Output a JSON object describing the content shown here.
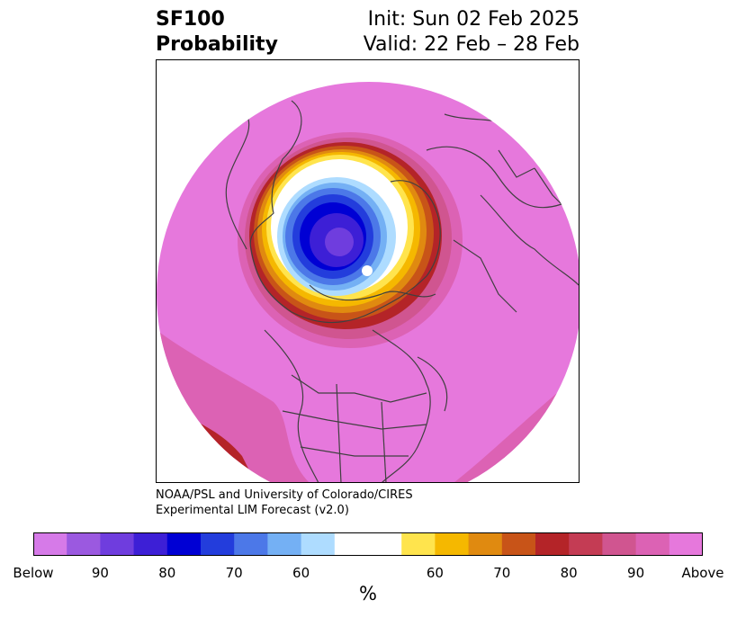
{
  "header": {
    "title_line1": "SF100",
    "title_line2": "Probability",
    "init": "Init: Sun 02 Feb 2025",
    "valid": "Valid: 22 Feb – 28 Feb"
  },
  "credit": {
    "line1": "NOAA/PSL and University of Colorado/CIRES",
    "line2": "Experimental LIM Forecast (v2.0)"
  },
  "colorbar": {
    "unit": "%",
    "colors": [
      "#d67ae8",
      "#9b59e0",
      "#6f3dde",
      "#3d1fd6",
      "#0000d4",
      "#233ddc",
      "#4c78e8",
      "#74b0f4",
      "#aedcff",
      "#ffffff",
      "#ffe44d",
      "#f5b800",
      "#e08a10",
      "#c85418",
      "#b42428",
      "#c43c54",
      "#d05590",
      "#dc62b4",
      "#e678dc"
    ],
    "labels": [
      "Below",
      "90",
      "80",
      "70",
      "60",
      "60",
      "70",
      "80",
      "90",
      "Above"
    ]
  },
  "map": {
    "colors": {
      "above_outer": "#e678dc",
      "above_2": "#dc62b4",
      "above_3": "#d05590",
      "dark_red": "#b42428",
      "orange_red": "#c85418",
      "orange": "#e08a10",
      "gold": "#f5b800",
      "yellow": "#ffe44d",
      "neutral": "#ffffff",
      "light_blue": "#aedcff",
      "sky_blue": "#74b0f4",
      "blue": "#4c78e8",
      "royal_blue": "#233ddc",
      "deep_blue": "#0000d4",
      "indigo": "#3d1fd6",
      "violet": "#6f3dde",
      "light_violet": "#9b59e0",
      "coastline": "#404040"
    }
  }
}
